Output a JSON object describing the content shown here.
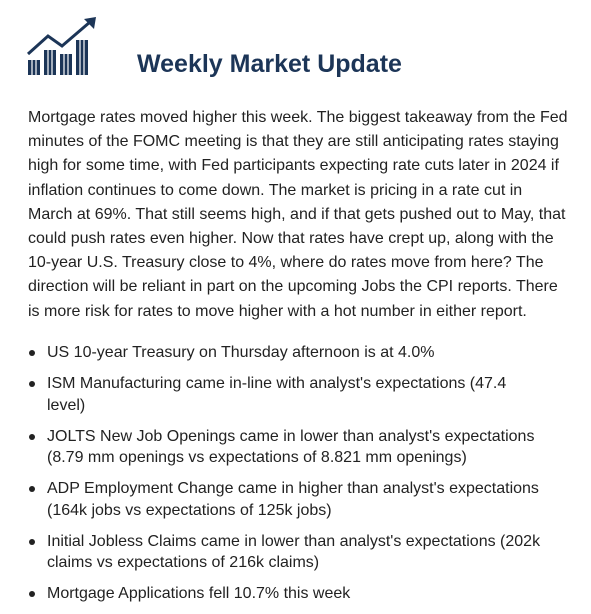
{
  "header": {
    "title": "Weekly Market Update"
  },
  "body": {
    "paragraph": "Mortgage rates moved higher this week. The biggest takeaway from the Fed minutes of the FOMC meeting is that they are still anticipating rates staying high for some time, with Fed participants expecting rate cuts later in 2024 if inflation continues to come down. The market is pricing in a rate cut in March at 69%. That still seems high, and if that gets pushed out to May, that could push rates even higher. Now that rates have crept up, along with the 10-year U.S. Treasury close to 4%, where do rates move from here? The direction will be reliant in part on the upcoming Jobs the CPI reports. There is more risk for rates to move higher with a hot number in either report.",
    "bullets": [
      "US 10-year Treasury on Thursday afternoon is at 4.0%",
      "ISM Manufacturing came in-line with analyst's expectations (47.4 level)",
      "JOLTS New Job Openings came in lower than analyst's expectations (8.79 mm openings vs expectations of 8.821 mm openings)",
      "ADP Employment Change came in higher than analyst's expectations (164k jobs vs expectations of 125k jobs)",
      "Initial Jobless Claims came in lower than analyst's expectations (202k claims vs expectations of 216k claims)",
      "Mortgage Applications fell 10.7% this week"
    ]
  }
}
